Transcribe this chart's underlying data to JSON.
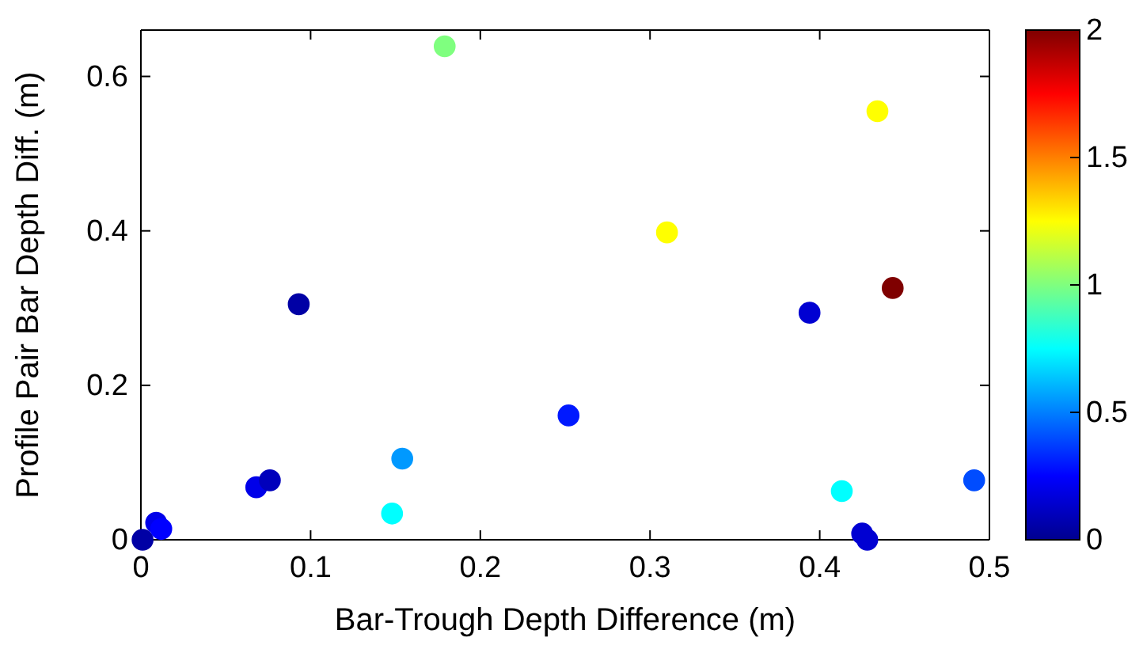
{
  "chart_data": {
    "type": "scatter",
    "xlabel": "Bar-Trough Depth Difference (m)",
    "ylabel": "Profile Pair Bar Depth Diff. (m)",
    "x": [
      0.001,
      0.009,
      0.012,
      0.068,
      0.076,
      0.093,
      0.148,
      0.154,
      0.179,
      0.252,
      0.31,
      0.434,
      0.443,
      0.394,
      0.413,
      0.491,
      0.425,
      0.428
    ],
    "values": [
      0,
      0.022,
      0.014,
      0.068,
      0.077,
      0.305,
      0.034,
      0.105,
      0.639,
      0.161,
      0.398,
      0.555,
      0.326,
      0.294,
      0.063,
      0.077,
      0.008,
      0
    ],
    "cvalues": [
      0.05,
      0.2,
      0.25,
      0.2,
      0.1,
      0.05,
      0.75,
      0.55,
      1.0,
      0.3,
      1.25,
      1.25,
      2.0,
      0.15,
      0.75,
      0.4,
      0.15,
      0.15
    ],
    "xlim": [
      0,
      0.5
    ],
    "xticks": [
      0,
      0.1,
      0.2,
      0.3,
      0.4,
      0.5
    ],
    "ylim": [
      0,
      0.66
    ],
    "yticks": [
      0,
      0.2,
      0.4,
      0.6
    ],
    "clim": [
      0,
      2
    ],
    "cticks": [
      0,
      0.5,
      1,
      1.5,
      2
    ],
    "marker": "circle",
    "grid": false
  }
}
